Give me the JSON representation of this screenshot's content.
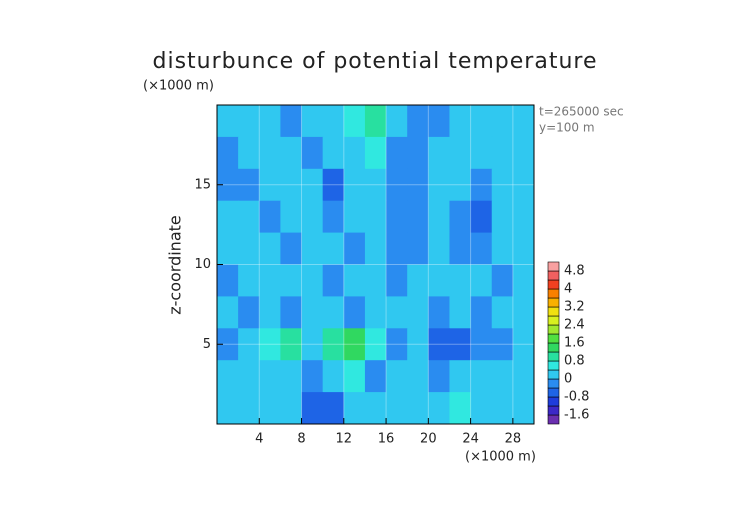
{
  "chart_data": {
    "type": "contour",
    "title": "disturbunce of potential temperature",
    "y_unit_label": "(×1000 m)",
    "x_unit_label": "(×1000 m)",
    "y_label": "z-coordinate",
    "annotations": [
      "t=265000 sec",
      "y=100 m"
    ],
    "xlim": [
      0,
      30
    ],
    "ylim": [
      0,
      20
    ],
    "xticks": [
      4,
      8,
      12,
      16,
      20,
      24,
      28
    ],
    "yticks": [
      5,
      10,
      15
    ],
    "x": [
      1,
      3,
      5,
      7,
      9,
      11,
      13,
      15,
      17,
      19,
      21,
      23,
      25,
      27,
      29
    ],
    "y": [
      19,
      17,
      15,
      13,
      11,
      9,
      7,
      5,
      3,
      1
    ],
    "z": [
      [
        0.2,
        0.3,
        0.1,
        -0.2,
        0.1,
        0.2,
        0.4,
        1.0,
        0.2,
        -0.2,
        -0.3,
        0.1,
        0.3,
        0.2,
        0.1
      ],
      [
        -0.2,
        0.2,
        0.3,
        0.1,
        -0.1,
        0.2,
        0.3,
        0.4,
        -0.1,
        -0.3,
        0.2,
        0.3,
        0.1,
        0.2,
        0.3
      ],
      [
        -0.3,
        -0.2,
        0.1,
        0.2,
        0.3,
        -0.5,
        0.1,
        0.2,
        -0.2,
        -0.4,
        0.3,
        0.1,
        -0.2,
        0.2,
        0.3
      ],
      [
        0.1,
        0.2,
        -0.1,
        0.2,
        0.3,
        -0.2,
        0.3,
        0.1,
        -0.3,
        -0.2,
        0.3,
        -0.3,
        -0.5,
        0.1,
        0.2
      ],
      [
        0.3,
        0.1,
        0.2,
        -0.2,
        0.3,
        0.2,
        -0.1,
        0.2,
        -0.1,
        -0.3,
        0.2,
        -0.2,
        -0.1,
        0.2,
        0.1
      ],
      [
        -0.2,
        0.2,
        0.1,
        0.3,
        0.1,
        -0.2,
        0.2,
        0.3,
        -0.2,
        0.1,
        0.3,
        0.1,
        0.2,
        -0.1,
        0.2
      ],
      [
        0.1,
        -0.2,
        0.2,
        -0.1,
        0.2,
        0.3,
        -0.2,
        0.2,
        0.1,
        0.3,
        -0.2,
        0.1,
        -0.2,
        0.2,
        0.1
      ],
      [
        -0.3,
        0.2,
        0.5,
        0.8,
        0.3,
        1.0,
        1.2,
        0.5,
        -0.4,
        0.1,
        -0.6,
        -0.7,
        -0.3,
        -0.2,
        0.1
      ],
      [
        0.2,
        0.1,
        0.3,
        0.1,
        -0.3,
        0.2,
        0.5,
        -0.2,
        0.3,
        0.2,
        -0.2,
        0.3,
        0.2,
        0.1,
        0.2
      ],
      [
        0.1,
        0.2,
        0.3,
        0.1,
        -0.5,
        -0.8,
        0.1,
        0.2,
        0.1,
        0.3,
        0.1,
        0.4,
        0.2,
        0.2,
        0.1
      ]
    ],
    "colorbar": {
      "levels": [
        -2.0,
        -1.6,
        -1.2,
        -0.8,
        -0.4,
        0,
        0.4,
        0.8,
        1.2,
        1.6,
        2.0,
        2.4,
        2.8,
        3.2,
        3.6,
        4.0,
        4.4,
        4.8,
        5.2
      ],
      "colors": [
        "#6a2fb0",
        "#3c28c8",
        "#1e3cdc",
        "#1e64e6",
        "#2a8cf0",
        "#30c8f0",
        "#30e8e0",
        "#28e0a0",
        "#30d860",
        "#50e040",
        "#a0e830",
        "#d8f020",
        "#f0e010",
        "#f8b000",
        "#f88000",
        "#f04020",
        "#f06060",
        "#f8a0a0"
      ],
      "ticks": [
        -1.6,
        -0.8,
        0,
        0.8,
        1.6,
        2.4,
        3.2,
        4,
        4.8
      ]
    }
  }
}
